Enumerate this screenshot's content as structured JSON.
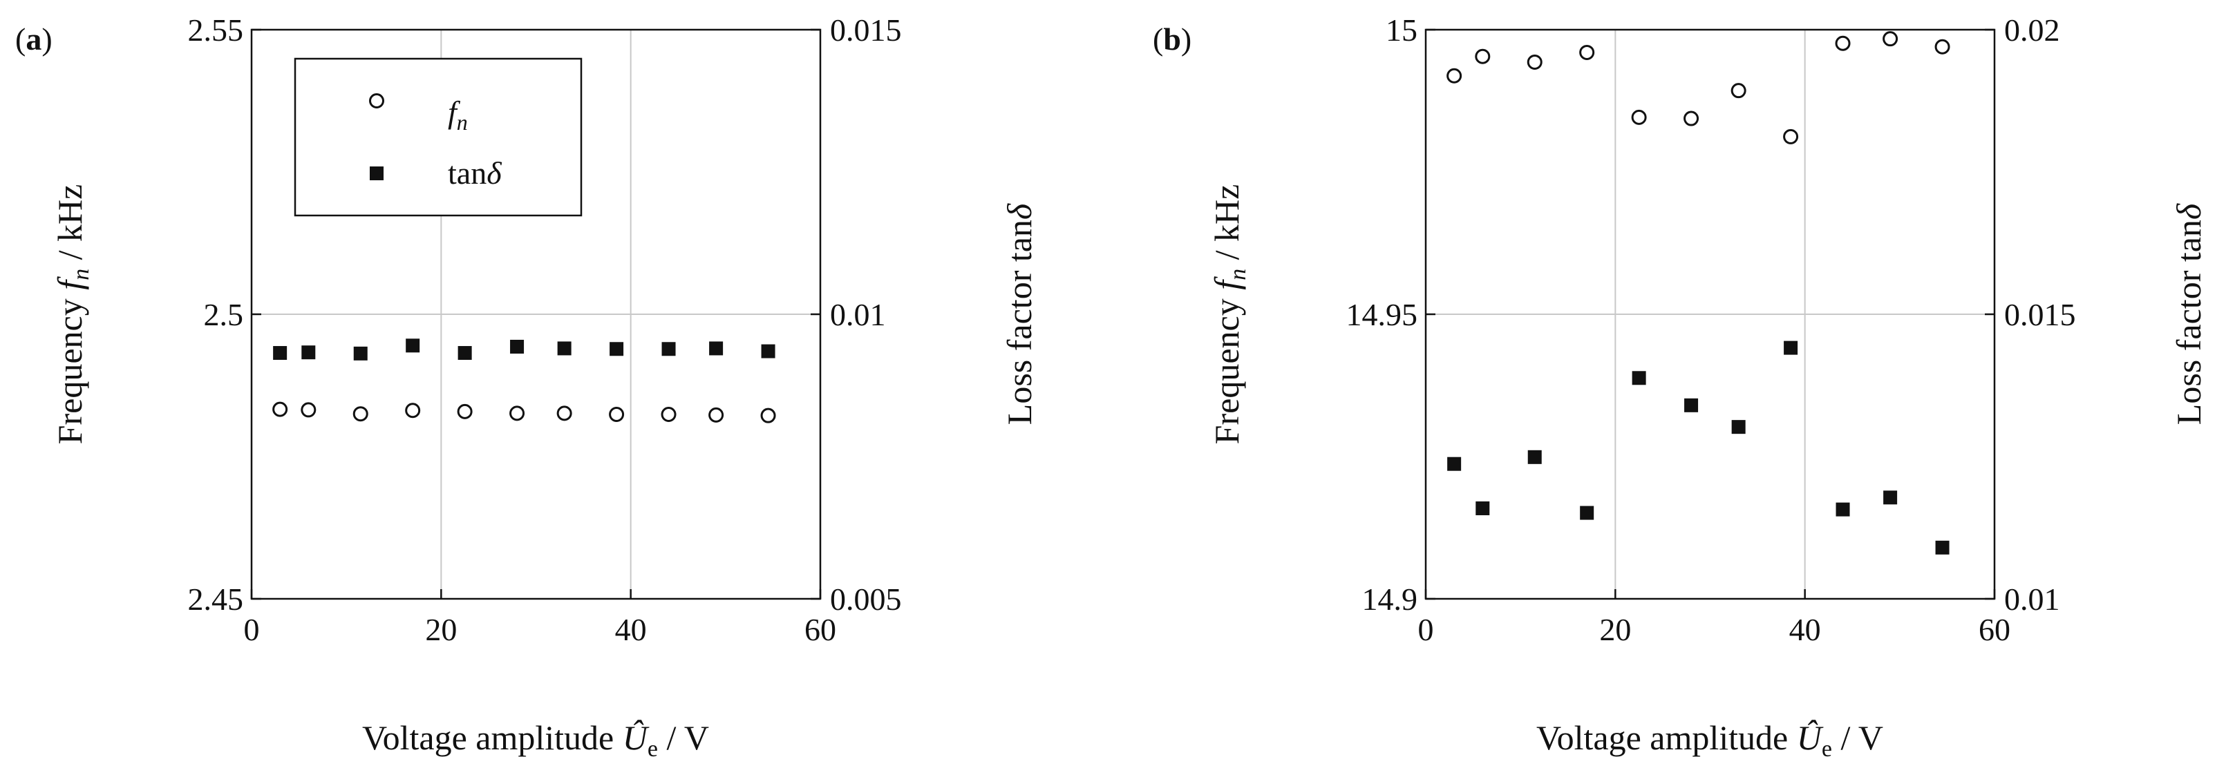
{
  "chart_data": [
    {
      "type": "scatter",
      "panel_label": "(a)",
      "xlabel": "Voltage amplitude Û_e / V",
      "ylabel_left": "Frequency f_n / kHz",
      "ylabel_right": "Loss factor tanδ",
      "xlim": [
        0,
        60
      ],
      "ylim_left": [
        2.45,
        2.55
      ],
      "ylim_right": [
        0.005,
        0.015
      ],
      "xticks": [
        "0",
        "20",
        "40",
        "60"
      ],
      "yticks_left": [
        "2.45",
        "2.5",
        "2.55"
      ],
      "yticks_right": [
        "0.005",
        "0.01",
        "0.015"
      ],
      "grid": true,
      "legend": {
        "position": "top-left",
        "entries": [
          "f_n",
          "tanδ"
        ]
      },
      "series": [
        {
          "name": "f_n",
          "axis": "left",
          "marker": "open-circle",
          "x": [
            3,
            6,
            11.5,
            17,
            22.5,
            28,
            33,
            38.5,
            44,
            49,
            54.5
          ],
          "y": [
            2.4833,
            2.4832,
            2.4825,
            2.4831,
            2.4829,
            2.4826,
            2.4826,
            2.4824,
            2.4824,
            2.4823,
            2.4822
          ]
        },
        {
          "name": "tanδ",
          "axis": "right",
          "marker": "filled-square",
          "x": [
            3,
            6,
            11.5,
            17,
            22.5,
            28,
            33,
            38.5,
            44,
            49,
            54.5
          ],
          "y": [
            0.00932,
            0.00933,
            0.00931,
            0.00945,
            0.00932,
            0.00943,
            0.0094,
            0.00939,
            0.00939,
            0.0094,
            0.00935
          ]
        }
      ]
    },
    {
      "type": "scatter",
      "panel_label": "(b)",
      "xlabel": "Voltage amplitude Û_e / V",
      "ylabel_left": "Frequency f_n / kHz",
      "ylabel_right": "Loss factor tanδ",
      "xlim": [
        0,
        60
      ],
      "ylim_left": [
        14.9,
        15.0
      ],
      "ylim_right": [
        0.01,
        0.02
      ],
      "xticks": [
        "0",
        "20",
        "40",
        "60"
      ],
      "yticks_left": [
        "14.9",
        "14.95",
        "15"
      ],
      "yticks_right": [
        "0.01",
        "0.015",
        "0.02"
      ],
      "grid": true,
      "series": [
        {
          "name": "f_n",
          "axis": "left",
          "marker": "open-circle",
          "x": [
            3,
            6,
            11.5,
            17,
            22.5,
            28,
            33,
            38.5,
            44,
            49,
            54.5
          ],
          "y": [
            14.9919,
            14.9953,
            14.9943,
            14.996,
            14.9846,
            14.9844,
            14.9893,
            14.9812,
            14.9976,
            14.9984,
            14.997
          ]
        },
        {
          "name": "tanδ",
          "axis": "right",
          "marker": "filled-square",
          "x": [
            3,
            6,
            11.5,
            17,
            22.5,
            28,
            33,
            38.5,
            44,
            49,
            54.5
          ],
          "y": [
            0.01237,
            0.01159,
            0.01249,
            0.01151,
            0.01388,
            0.0134,
            0.01302,
            0.01441,
            0.01157,
            0.01178,
            0.0109
          ]
        }
      ]
    }
  ]
}
